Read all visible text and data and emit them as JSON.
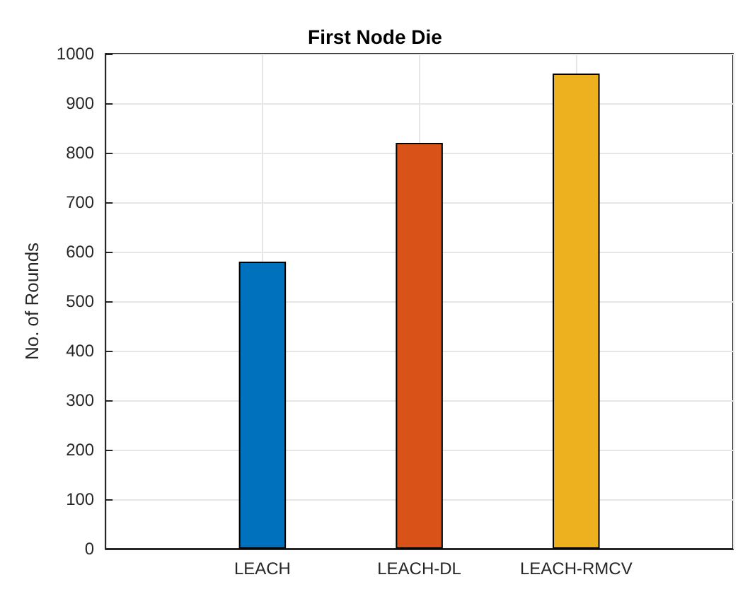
{
  "chart_data": {
    "type": "bar",
    "title": "First Node Die",
    "ylabel": "No. of Rounds",
    "categories": [
      null,
      "LEACH",
      "LEACH-DL",
      "LEACH-RMCV",
      null
    ],
    "values": [
      null,
      580,
      820,
      960,
      null
    ],
    "colors": [
      "#0072bd",
      "#0072bd",
      "#d95319",
      "#edb120",
      "#edb120"
    ],
    "ylim": [
      0,
      1000
    ],
    "yticks": [
      0,
      100,
      200,
      300,
      400,
      500,
      600,
      700,
      800,
      900,
      1000
    ],
    "grid": true
  }
}
